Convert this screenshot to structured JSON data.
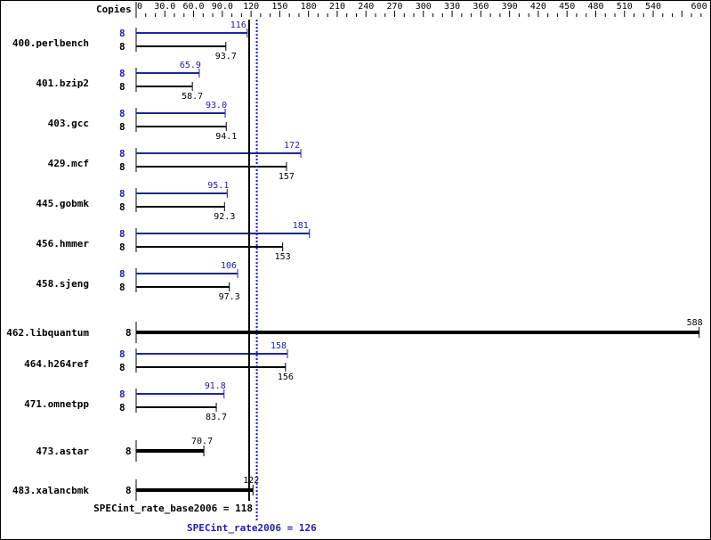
{
  "chart_data": {
    "type": "bar",
    "orientation": "horizontal",
    "axis_label": "Copies",
    "xlim": [
      0,
      600
    ],
    "ticks": [
      "0",
      "30.0",
      "60.0",
      "90.0",
      "120",
      "150",
      "180",
      "210",
      "240",
      "270",
      "300",
      "330",
      "360",
      "390",
      "420",
      "450",
      "480",
      "510",
      "540",
      "600"
    ],
    "tick_values": [
      0,
      30,
      60,
      90,
      120,
      150,
      180,
      210,
      240,
      270,
      300,
      330,
      360,
      390,
      420,
      450,
      480,
      510,
      540,
      600
    ],
    "colors": {
      "peak": "#2020a8",
      "base": "#000000"
    },
    "benchmarks": [
      {
        "name": "400.perlbench",
        "peak_copies": "8",
        "peak": 116,
        "base_copies": "8",
        "base": 93.7,
        "peak_label": "116",
        "base_label": "93.7"
      },
      {
        "name": "401.bzip2",
        "peak_copies": "8",
        "peak": 65.9,
        "base_copies": "8",
        "base": 58.7,
        "peak_label": "65.9",
        "base_label": "58.7"
      },
      {
        "name": "403.gcc",
        "peak_copies": "8",
        "peak": 93.0,
        "base_copies": "8",
        "base": 94.1,
        "peak_label": "93.0",
        "base_label": "94.1"
      },
      {
        "name": "429.mcf",
        "peak_copies": "8",
        "peak": 172,
        "base_copies": "8",
        "base": 157,
        "peak_label": "172",
        "base_label": "157"
      },
      {
        "name": "445.gobmk",
        "peak_copies": "8",
        "peak": 95.1,
        "base_copies": "8",
        "base": 92.3,
        "peak_label": "95.1",
        "base_label": "92.3"
      },
      {
        "name": "456.hmmer",
        "peak_copies": "8",
        "peak": 181,
        "base_copies": "8",
        "base": 153,
        "peak_label": "181",
        "base_label": "153"
      },
      {
        "name": "458.sjeng",
        "peak_copies": "8",
        "peak": 106,
        "base_copies": "8",
        "base": 97.3,
        "peak_label": "106",
        "base_label": "97.3"
      },
      {
        "name": "462.libquantum",
        "base_copies": "8",
        "base": 588,
        "base_label": "588",
        "single": true
      },
      {
        "name": "464.h264ref",
        "peak_copies": "8",
        "peak": 158,
        "base_copies": "8",
        "base": 156,
        "peak_label": "158",
        "base_label": "156"
      },
      {
        "name": "471.omnetpp",
        "peak_copies": "8",
        "peak": 91.8,
        "base_copies": "8",
        "base": 83.7,
        "peak_label": "91.8",
        "base_label": "83.7"
      },
      {
        "name": "473.astar",
        "base_copies": "8",
        "base": 70.7,
        "base_label": "70.7",
        "single": true
      },
      {
        "name": "483.xalancbmk",
        "base_copies": "8",
        "base": 122,
        "base_label": "122",
        "single": true
      }
    ],
    "base_metric": {
      "label": "SPECint_rate_base2006 = 118",
      "value": 118
    },
    "peak_metric": {
      "label": "SPECint_rate2006 = 126",
      "value": 126
    }
  }
}
